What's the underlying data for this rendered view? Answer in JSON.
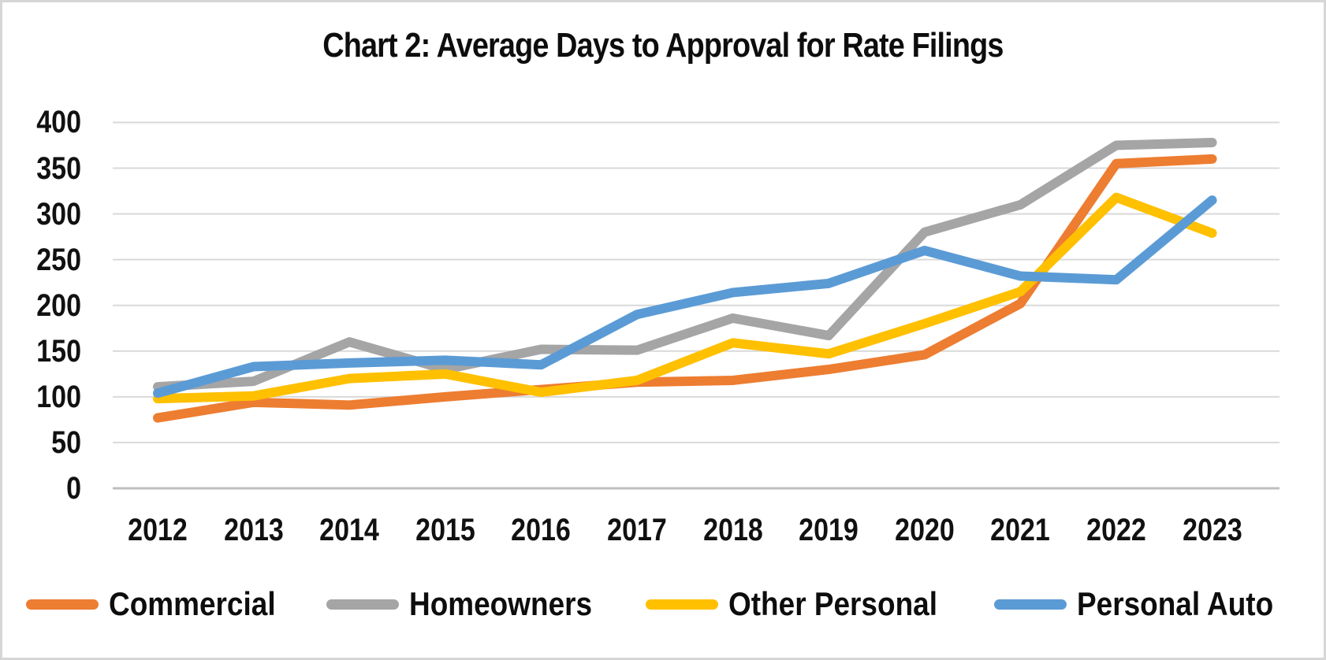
{
  "title": "Chart 2: Average Days to Approval for Rate Filings",
  "chart_data": {
    "type": "line",
    "title": "Chart 2: Average Days to Approval for Rate Filings",
    "categories": [
      "2012",
      "2013",
      "2014",
      "2015",
      "2016",
      "2017",
      "2018",
      "2019",
      "2020",
      "2021",
      "2022",
      "2023"
    ],
    "series": [
      {
        "name": "Commercial",
        "color": "#ED7D31",
        "values": [
          77,
          94,
          91,
          100,
          108,
          116,
          118,
          130,
          146,
          202,
          355,
          360
        ]
      },
      {
        "name": "Homeowners",
        "color": "#A5A5A5",
        "values": [
          111,
          117,
          160,
          130,
          152,
          151,
          186,
          167,
          280,
          310,
          375,
          378
        ]
      },
      {
        "name": "Other Personal",
        "color": "#FFC000",
        "values": [
          98,
          101,
          120,
          125,
          105,
          118,
          159,
          147,
          180,
          215,
          318,
          279
        ]
      },
      {
        "name": "Personal Auto",
        "color": "#5B9BD5",
        "values": [
          104,
          133,
          137,
          140,
          135,
          190,
          214,
          224,
          260,
          232,
          228,
          315
        ]
      }
    ],
    "ylim": [
      0,
      400
    ],
    "ytick_step": 50,
    "yticks": [
      "0",
      "50",
      "100",
      "150",
      "200",
      "250",
      "300",
      "350",
      "400"
    ],
    "xlabel": "",
    "ylabel": "",
    "grid": "horizontal",
    "legend_position": "bottom",
    "colors": {
      "gridline": "#d9d9d9",
      "axis_line": "#bfbfbf",
      "frame_border": "#d6d6d6",
      "text": "#0d0d0d",
      "background": "#ffffff"
    }
  }
}
